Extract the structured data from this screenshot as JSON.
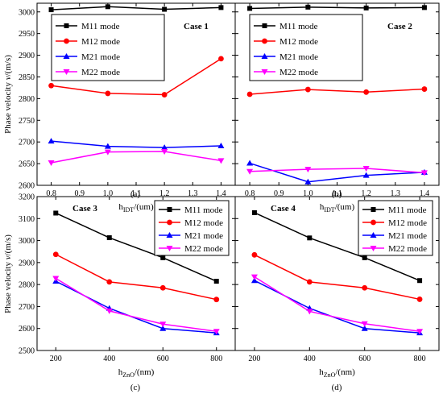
{
  "figure": {
    "ylabel_main": "Phase velocity ",
    "ylabel_var": "v",
    "ylabel_unit": "/(m/s)"
  },
  "chart_data": [
    {
      "type": "line",
      "subplot": "(a)",
      "case_label": "Case 1",
      "xlabel_base": "h",
      "xlabel_sub": "IDT",
      "xlabel_unit": "/(um)",
      "x": [
        0.8,
        1.0,
        1.2,
        1.4
      ],
      "xlim": [
        0.75,
        1.45
      ],
      "xticks": [
        0.8,
        0.9,
        1.0,
        1.1,
        1.2,
        1.3,
        1.4
      ],
      "xtick_labels": [
        "0.8",
        "0.9",
        "1.0",
        "1.1",
        "1.2",
        "1.3",
        "1.4"
      ],
      "ylim": [
        2600,
        3020
      ],
      "yticks": [
        2600,
        2650,
        2700,
        2750,
        2800,
        2850,
        2900,
        2950,
        3000
      ],
      "ytick_labels": [
        "2600",
        "2650",
        "2700",
        "2750",
        "2800",
        "2850",
        "2900",
        "2950",
        "3000"
      ],
      "legend_position": "upper-left",
      "series": [
        {
          "name": "M11 mode",
          "color": "#000000",
          "marker": "square",
          "values": [
            3005,
            3012,
            3006,
            3010
          ]
        },
        {
          "name": "M12 mode",
          "color": "#ff0000",
          "marker": "circle",
          "values": [
            2830,
            2812,
            2809,
            2892
          ]
        },
        {
          "name": "M21 mode",
          "color": "#0000ff",
          "marker": "triangle-up",
          "values": [
            2702,
            2690,
            2687,
            2691
          ]
        },
        {
          "name": "M22 mode",
          "color": "#ff00ff",
          "marker": "triangle-down",
          "values": [
            2652,
            2677,
            2678,
            2657
          ]
        }
      ]
    },
    {
      "type": "line",
      "subplot": "(b)",
      "case_label": "Case 2",
      "xlabel_base": "h",
      "xlabel_sub": "IDT",
      "xlabel_unit": "/(um)",
      "x": [
        0.8,
        1.0,
        1.2,
        1.4
      ],
      "xlim": [
        0.75,
        1.45
      ],
      "xticks": [
        0.8,
        0.9,
        1.0,
        1.1,
        1.2,
        1.3,
        1.4
      ],
      "xtick_labels": [
        "0.8",
        "0.9",
        "1.0",
        "1.1",
        "1.2",
        "1.3",
        "1.4"
      ],
      "ylim": [
        2600,
        3020
      ],
      "yticks": [
        2600,
        2650,
        2700,
        2750,
        2800,
        2850,
        2900,
        2950,
        3000
      ],
      "ytick_labels": [],
      "legend_position": "upper-left",
      "series": [
        {
          "name": "M11 mode",
          "color": "#000000",
          "marker": "square",
          "values": [
            3008,
            3011,
            3009,
            3010
          ]
        },
        {
          "name": "M12 mode",
          "color": "#ff0000",
          "marker": "circle",
          "values": [
            2810,
            2821,
            2815,
            2822
          ]
        },
        {
          "name": "M21 mode",
          "color": "#0000ff",
          "marker": "triangle-up",
          "values": [
            2651,
            2608,
            2623,
            2630
          ]
        },
        {
          "name": "M22 mode",
          "color": "#ff00ff",
          "marker": "triangle-down",
          "values": [
            2632,
            2637,
            2639,
            2629
          ]
        }
      ]
    },
    {
      "type": "line",
      "subplot": "(c)",
      "case_label": "Case 3",
      "xlabel_base": "h",
      "xlabel_sub": "ZnO",
      "xlabel_unit": "/(nm)",
      "x": [
        200,
        400,
        600,
        800
      ],
      "xlim": [
        130,
        870
      ],
      "xticks": [
        200,
        400,
        600,
        800
      ],
      "xtick_labels": [
        "200",
        "400",
        "600",
        "800"
      ],
      "ylim": [
        2500,
        3200
      ],
      "yticks": [
        2500,
        2600,
        2700,
        2800,
        2900,
        3000,
        3100,
        3200
      ],
      "ytick_labels": [
        "2500",
        "2600",
        "2700",
        "2800",
        "2900",
        "3000",
        "3100",
        "3200"
      ],
      "legend_position": "upper-right",
      "series": [
        {
          "name": "M11 mode",
          "color": "#000000",
          "marker": "square",
          "values": [
            3125,
            3013,
            2922,
            2815
          ]
        },
        {
          "name": "M12 mode",
          "color": "#ff0000",
          "marker": "circle",
          "values": [
            2937,
            2812,
            2785,
            2732
          ]
        },
        {
          "name": "M21 mode",
          "color": "#0000ff",
          "marker": "triangle-up",
          "values": [
            2815,
            2692,
            2600,
            2580
          ]
        },
        {
          "name": "M22 mode",
          "color": "#ff00ff",
          "marker": "triangle-down",
          "values": [
            2828,
            2680,
            2620,
            2587
          ]
        }
      ]
    },
    {
      "type": "line",
      "subplot": "(d)",
      "case_label": "Case 4",
      "xlabel_base": "h",
      "xlabel_sub": "ZnO",
      "xlabel_unit": "/(nm)",
      "x": [
        200,
        400,
        600,
        800
      ],
      "xlim": [
        130,
        870
      ],
      "xticks": [
        200,
        400,
        600,
        800
      ],
      "xtick_labels": [
        "200",
        "400",
        "600",
        "800"
      ],
      "ylim": [
        2500,
        3200
      ],
      "yticks": [
        2500,
        2600,
        2700,
        2800,
        2900,
        3000,
        3100,
        3200
      ],
      "ytick_labels": [],
      "legend_position": "upper-right",
      "series": [
        {
          "name": "M11 mode",
          "color": "#000000",
          "marker": "square",
          "values": [
            3127,
            3012,
            2922,
            2818
          ]
        },
        {
          "name": "M12 mode",
          "color": "#ff0000",
          "marker": "circle",
          "values": [
            2935,
            2812,
            2785,
            2733
          ]
        },
        {
          "name": "M21 mode",
          "color": "#0000ff",
          "marker": "triangle-up",
          "values": [
            2818,
            2692,
            2600,
            2580
          ]
        },
        {
          "name": "M22 mode",
          "color": "#ff00ff",
          "marker": "triangle-down",
          "values": [
            2835,
            2678,
            2622,
            2587
          ]
        }
      ]
    }
  ]
}
